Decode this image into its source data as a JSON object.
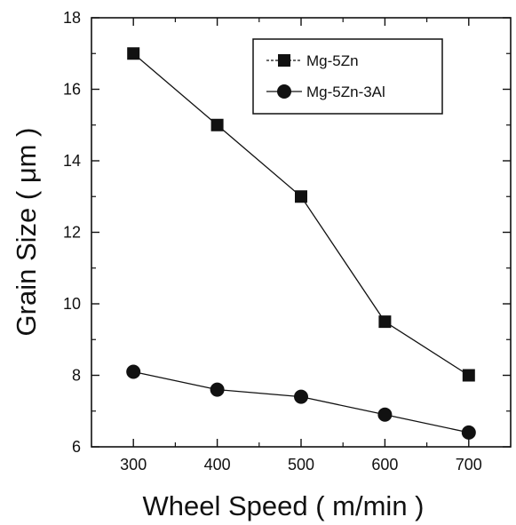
{
  "chart_data": {
    "type": "line",
    "title": "",
    "xlabel": "Wheel Speed ( m/min )",
    "ylabel": "Grain Size ( μm )",
    "xlim": [
      250,
      750
    ],
    "ylim": [
      6,
      18
    ],
    "xticks": [
      300,
      400,
      500,
      600,
      700
    ],
    "yticks": [
      6,
      8,
      10,
      12,
      14,
      16,
      18
    ],
    "grid": false,
    "legend_position": "top-right",
    "x": [
      300,
      400,
      500,
      600,
      700
    ],
    "series": [
      {
        "name": "Mg-5Zn",
        "marker": "square",
        "values": [
          17.0,
          15.0,
          13.0,
          9.5,
          8.0
        ]
      },
      {
        "name": "Mg-5Zn-3Al",
        "marker": "circle",
        "values": [
          8.1,
          7.6,
          7.4,
          6.9,
          6.4
        ]
      }
    ]
  }
}
